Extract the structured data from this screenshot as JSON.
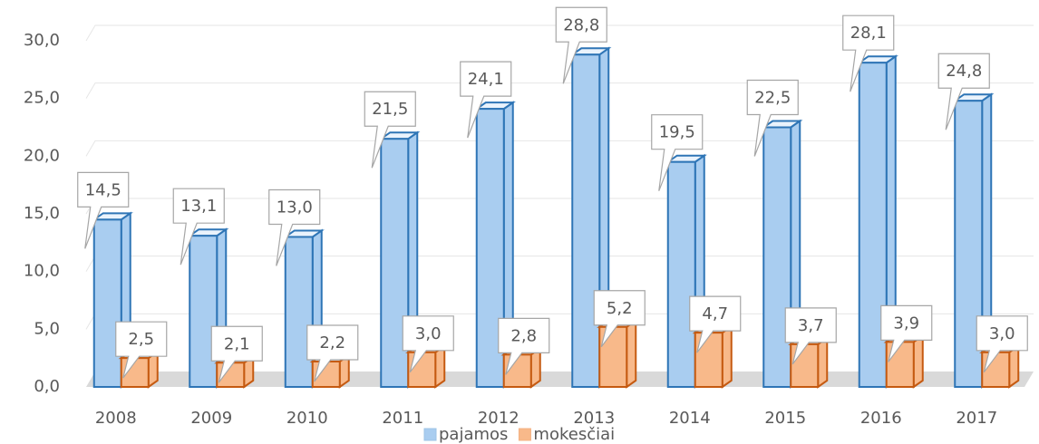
{
  "chart_data": {
    "type": "bar",
    "categories": [
      "2008",
      "2009",
      "2010",
      "2011",
      "2012",
      "2013",
      "2014",
      "2015",
      "2016",
      "2017"
    ],
    "series": [
      {
        "name": "pajamos",
        "color": "#a9cdf0",
        "values": [
          14.5,
          13.1,
          13.0,
          21.5,
          24.1,
          28.8,
          19.5,
          22.5,
          28.1,
          24.8
        ],
        "value_labels": [
          "14,5",
          "13,1",
          "13,0",
          "21,5",
          "24,1",
          "28,8",
          "19,5",
          "22,5",
          "28,1",
          "24,8"
        ]
      },
      {
        "name": "mokesčiai",
        "color": "#f8b98a",
        "values": [
          2.5,
          2.1,
          2.2,
          3.0,
          2.8,
          5.2,
          4.7,
          3.7,
          3.9,
          3.0
        ],
        "value_labels": [
          "2,5",
          "2,1",
          "2,2",
          "3,0",
          "2,8",
          "5,2",
          "4,7",
          "3,7",
          "3,9",
          "3,0"
        ]
      }
    ],
    "ylim": [
      0,
      30
    ],
    "yticks": [
      {
        "value": 0,
        "label": "0,0"
      },
      {
        "value": 5,
        "label": "5,0"
      },
      {
        "value": 10,
        "label": "10,0"
      },
      {
        "value": 15,
        "label": "15,0"
      },
      {
        "value": 20,
        "label": "20,0"
      },
      {
        "value": 25,
        "label": "25,0"
      },
      {
        "value": 30,
        "label": "30,0"
      }
    ],
    "grid": true,
    "legend": "bottom"
  }
}
